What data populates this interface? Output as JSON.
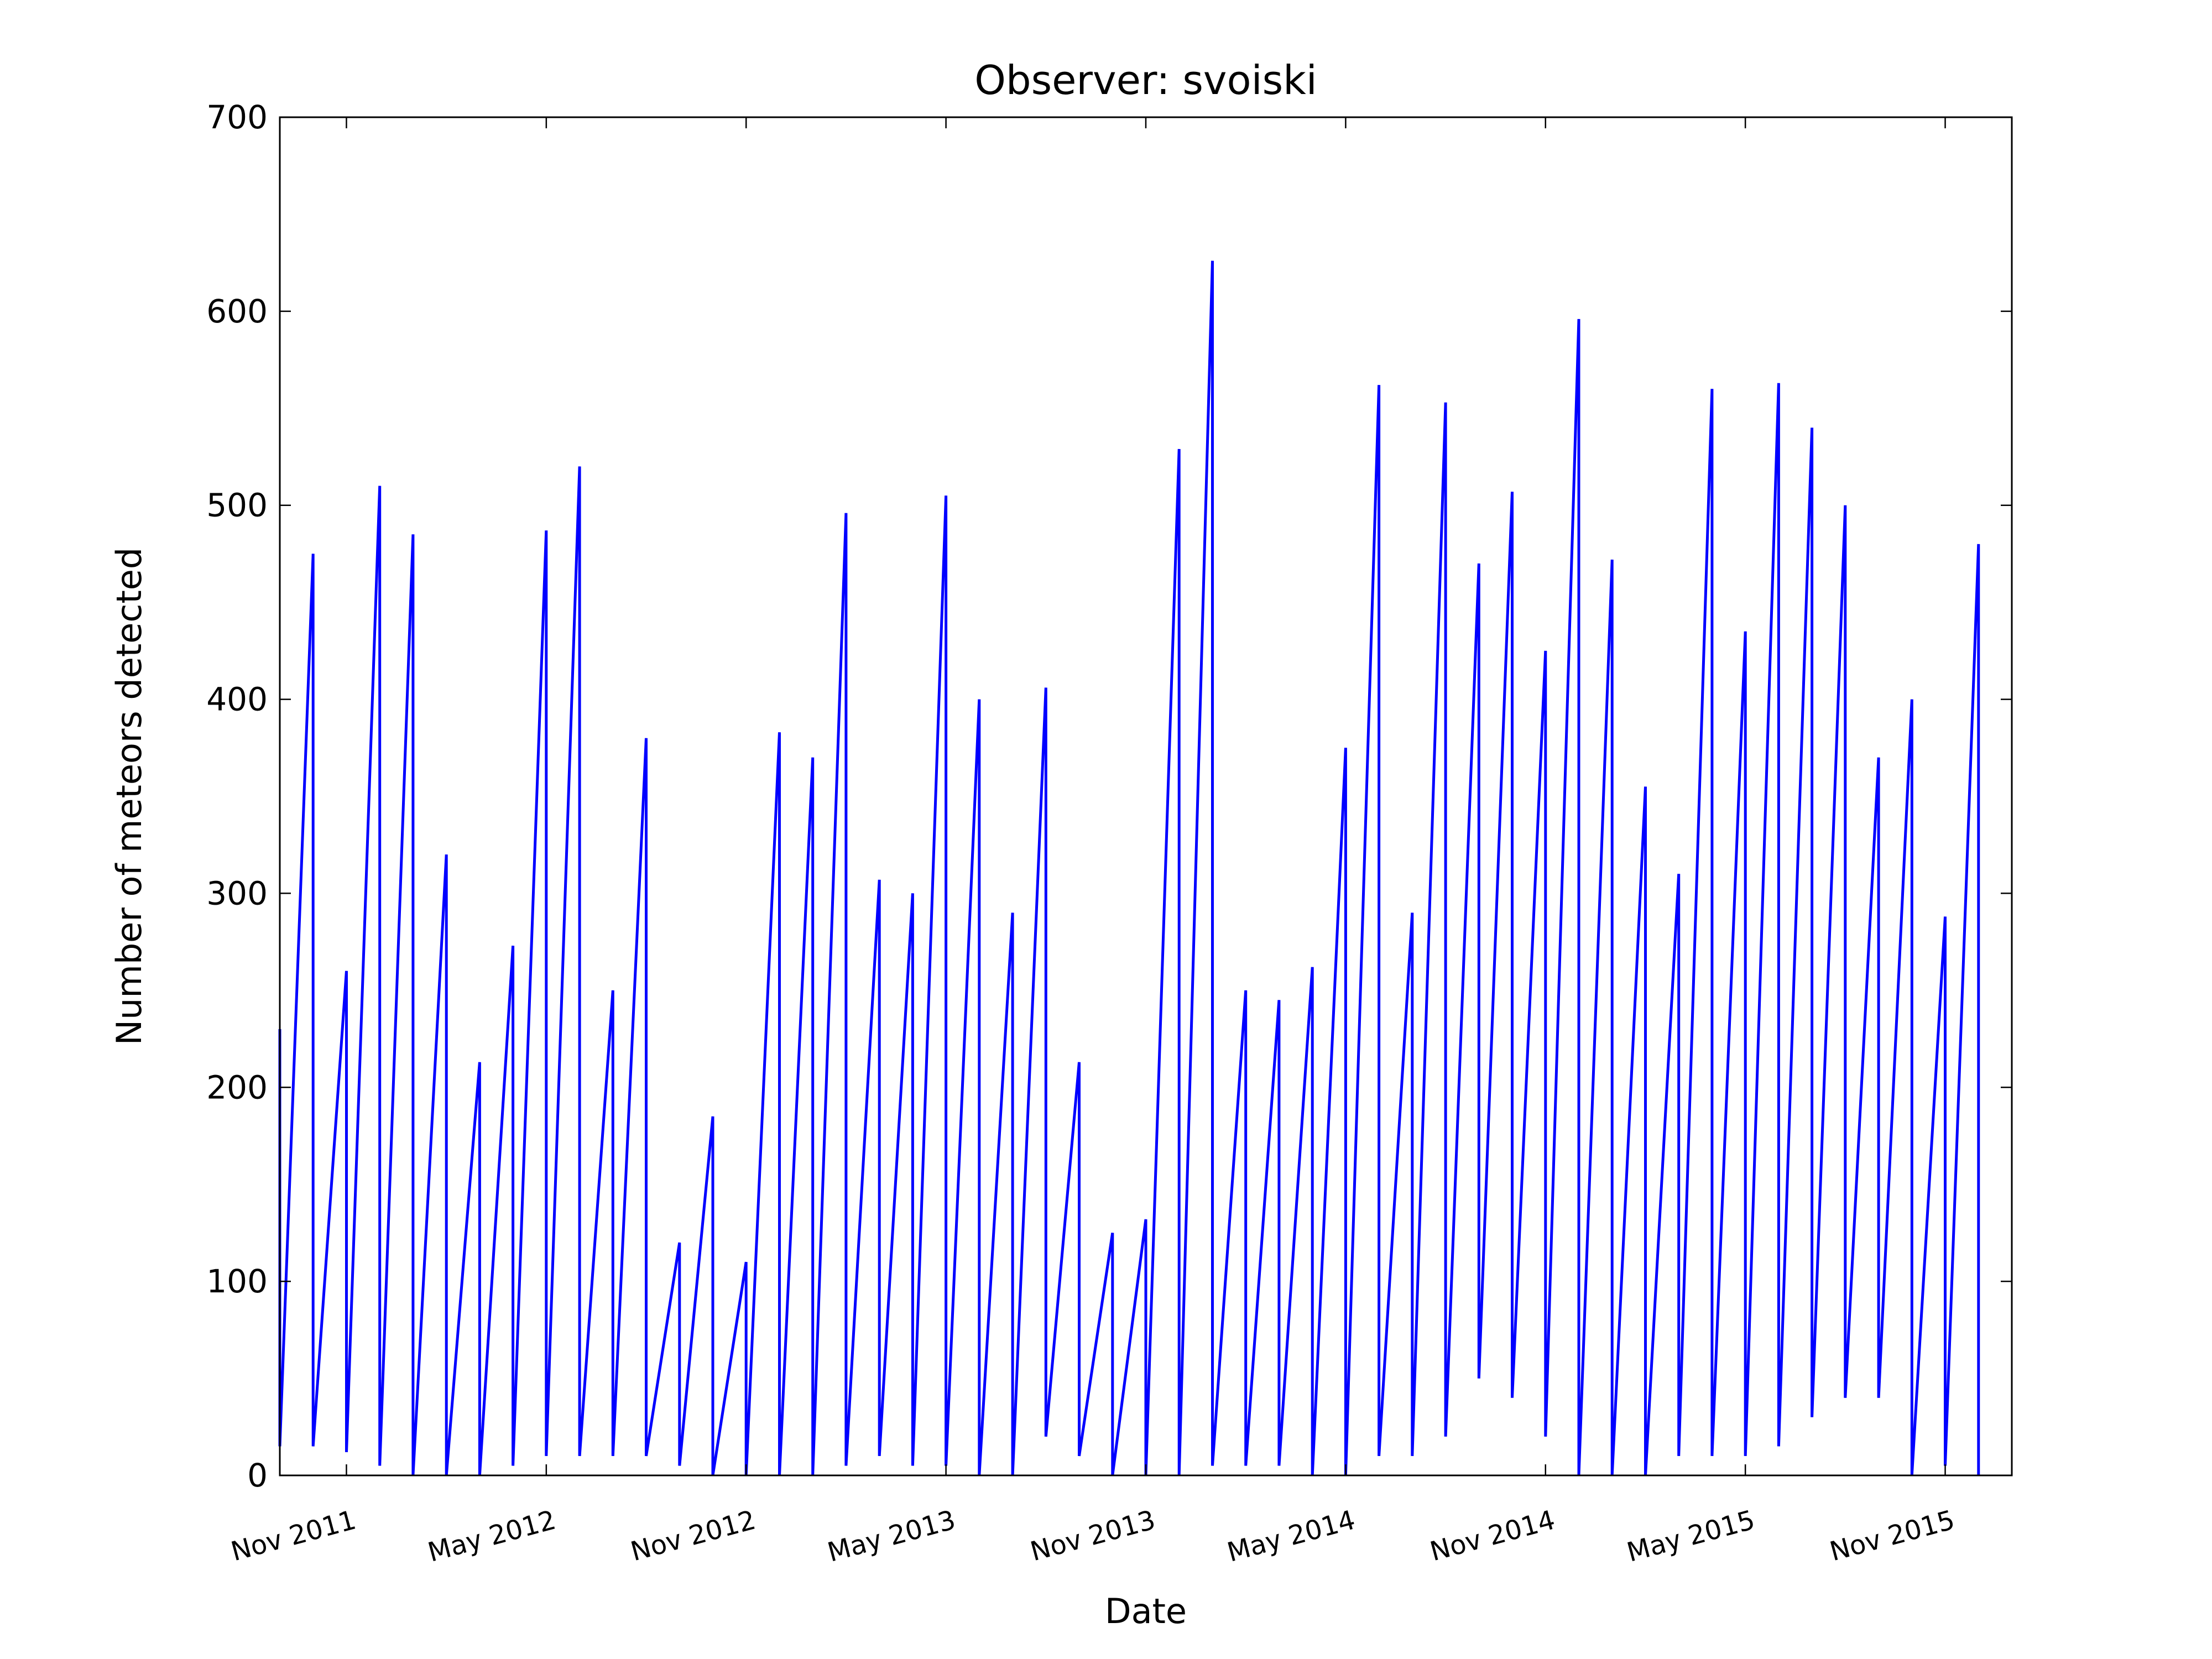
{
  "chart_data": {
    "type": "line",
    "title": "Observer: svoiski",
    "xlabel": "Date",
    "ylabel": "Number of meteors detected",
    "color": "#0000ff",
    "x": [
      "2011-09",
      "2011-09",
      "2011-10",
      "2011-10",
      "2011-11",
      "2011-11",
      "2011-12",
      "2011-12",
      "2012-01",
      "2012-01",
      "2012-02",
      "2012-02",
      "2012-03",
      "2012-03",
      "2012-04",
      "2012-04",
      "2012-05",
      "2012-05",
      "2012-06",
      "2012-06",
      "2012-07",
      "2012-07",
      "2012-08",
      "2012-08",
      "2012-09",
      "2012-09",
      "2012-10",
      "2012-10",
      "2012-11",
      "2012-11",
      "2012-12",
      "2012-12",
      "2013-01",
      "2013-01",
      "2013-02",
      "2013-02",
      "2013-03",
      "2013-03",
      "2013-04",
      "2013-04",
      "2013-05",
      "2013-05",
      "2013-06",
      "2013-06",
      "2013-07",
      "2013-07",
      "2013-08",
      "2013-08",
      "2013-09",
      "2013-09",
      "2013-10",
      "2013-10",
      "2013-11",
      "2013-11",
      "2013-12",
      "2013-12",
      "2014-01",
      "2014-01",
      "2014-02",
      "2014-02",
      "2014-03",
      "2014-03",
      "2014-04",
      "2014-04",
      "2014-05",
      "2014-05",
      "2014-06",
      "2014-06",
      "2014-07",
      "2014-07",
      "2014-08",
      "2014-08",
      "2014-09",
      "2014-09",
      "2014-10",
      "2014-10",
      "2014-11",
      "2014-11",
      "2014-12",
      "2014-12",
      "2015-01",
      "2015-01",
      "2015-02",
      "2015-02",
      "2015-03",
      "2015-03",
      "2015-04",
      "2015-04",
      "2015-05",
      "2015-05",
      "2015-06",
      "2015-06",
      "2015-07",
      "2015-07",
      "2015-08",
      "2015-08",
      "2015-09",
      "2015-09",
      "2015-10",
      "2015-10",
      "2015-11",
      "2015-11",
      "2015-12",
      "2015-12"
    ],
    "values": [
      230,
      15,
      475,
      15,
      260,
      12,
      510,
      5,
      485,
      0,
      320,
      0,
      213,
      0,
      273,
      5,
      487,
      10,
      520,
      10,
      250,
      10,
      380,
      10,
      120,
      5,
      185,
      0,
      110,
      0,
      383,
      0,
      370,
      0,
      496,
      5,
      307,
      10,
      300,
      5,
      505,
      5,
      400,
      0,
      290,
      0,
      406,
      20,
      213,
      10,
      125,
      0,
      132,
      0,
      529,
      0,
      626,
      5,
      250,
      5,
      245,
      5,
      262,
      0,
      375,
      0,
      562,
      10,
      290,
      10,
      553,
      20,
      470,
      50,
      507,
      40,
      425,
      20,
      596,
      0,
      472,
      0,
      355,
      0,
      310,
      10,
      560,
      10,
      435,
      10,
      563,
      15,
      540,
      30,
      500,
      40,
      370,
      40,
      400,
      0,
      288,
      5,
      480,
      0
    ],
    "xlim": [
      "2011-09",
      "2016-01"
    ],
    "xticks": [
      {
        "value": "2011-11",
        "label": "Nov 2011"
      },
      {
        "value": "2012-05",
        "label": "May 2012"
      },
      {
        "value": "2012-11",
        "label": "Nov 2012"
      },
      {
        "value": "2013-05",
        "label": "May 2013"
      },
      {
        "value": "2013-11",
        "label": "Nov 2013"
      },
      {
        "value": "2014-05",
        "label": "May 2014"
      },
      {
        "value": "2014-11",
        "label": "Nov 2014"
      },
      {
        "value": "2015-05",
        "label": "May 2015"
      },
      {
        "value": "2015-11",
        "label": "Nov 2015"
      }
    ],
    "ylim": [
      0,
      700
    ],
    "yticks": [
      0,
      100,
      200,
      300,
      400,
      500,
      600,
      700
    ]
  }
}
